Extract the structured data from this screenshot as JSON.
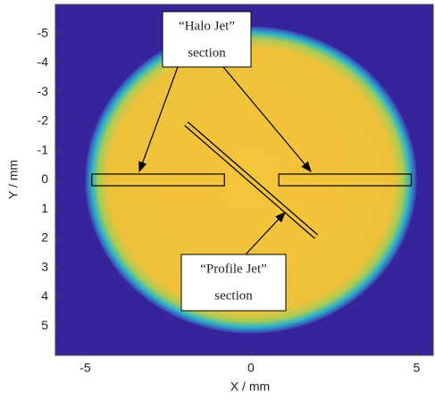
{
  "chart_data": {
    "type": "image",
    "x_label": "X / mm",
    "y_label": "Y / mm",
    "xlim": [
      -5.9,
      5.5
    ],
    "ylim": [
      -6,
      6
    ],
    "y_inverted": true,
    "xticks": [
      -5,
      0,
      5
    ],
    "yticks": [
      -5,
      -4,
      -3,
      -2,
      -1,
      0,
      1,
      2,
      3,
      4,
      5
    ],
    "beam": {
      "cx": 0,
      "cy": 0,
      "rx": 5,
      "ry": 5.25
    },
    "regions": [
      {
        "x": [
          -4.8,
          -0.8
        ],
        "y": [
          -0.2,
          0.2
        ]
      },
      {
        "x": [
          0.84,
          4.84
        ],
        "y": [
          -0.2,
          0.2
        ]
      }
    ],
    "profile_jet": {
      "x": [
        -1.95,
        1.97
      ],
      "y": [
        -1.92,
        1.94
      ]
    },
    "annotations": [
      {
        "lines": [
          "“Halo Jet”",
          "section"
        ]
      },
      {
        "lines": [
          "“Profile Jet”",
          "section"
        ]
      }
    ]
  }
}
